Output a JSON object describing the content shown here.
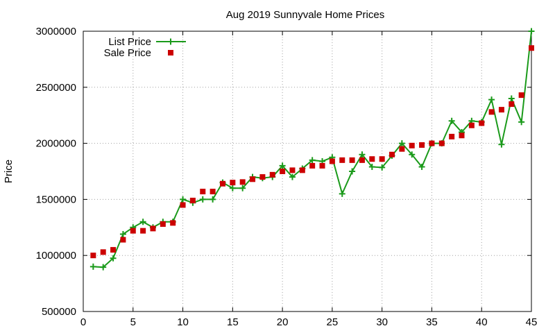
{
  "chart_data": {
    "type": "line",
    "title": "Aug 2019 Sunnyvale Home Prices",
    "xlabel": "",
    "ylabel": "Price",
    "xlim": [
      0,
      45
    ],
    "ylim": [
      500000,
      3000000
    ],
    "x_ticks": [
      "0",
      "5",
      "10",
      "15",
      "20",
      "25",
      "30",
      "35",
      "40",
      "45"
    ],
    "y_ticks": [
      "500000",
      "1000000",
      "1500000",
      "2000000",
      "2500000",
      "3000000"
    ],
    "grid": true,
    "legend_position": "top-left",
    "x": [
      1,
      2,
      3,
      4,
      5,
      6,
      7,
      8,
      9,
      10,
      11,
      12,
      13,
      14,
      15,
      16,
      17,
      18,
      19,
      20,
      21,
      22,
      23,
      24,
      25,
      26,
      27,
      28,
      29,
      30,
      31,
      32,
      33,
      34,
      35,
      36,
      37,
      38,
      39,
      40,
      41,
      42,
      43,
      44,
      45
    ],
    "series": [
      {
        "name": "List Price",
        "style": "line-plus",
        "color": "#1a9a1a",
        "values": [
          900000,
          895000,
          975000,
          1190000,
          1250000,
          1300000,
          1250000,
          1300000,
          1300000,
          1500000,
          1470000,
          1500000,
          1500000,
          1650000,
          1600000,
          1600000,
          1700000,
          1690000,
          1700000,
          1800000,
          1700000,
          1775000,
          1850000,
          1840000,
          1875000,
          1550000,
          1750000,
          1900000,
          1790000,
          1785000,
          1890000,
          2000000,
          1900000,
          1790000,
          2000000,
          2000000,
          2200000,
          2100000,
          2200000,
          2190000,
          2390000,
          1990000,
          2400000,
          2190000,
          3000000
        ]
      },
      {
        "name": "Sale Price",
        "style": "square-points",
        "color": "#cc0000",
        "values": [
          1000000,
          1030000,
          1050000,
          1140000,
          1220000,
          1220000,
          1240000,
          1280000,
          1290000,
          1450000,
          1490000,
          1570000,
          1570000,
          1640000,
          1650000,
          1655000,
          1680000,
          1700000,
          1720000,
          1750000,
          1760000,
          1760000,
          1800000,
          1800000,
          1840000,
          1850000,
          1850000,
          1850000,
          1860000,
          1860000,
          1900000,
          1950000,
          1980000,
          1985000,
          2000000,
          2000000,
          2060000,
          2070000,
          2160000,
          2180000,
          2280000,
          2300000,
          2350000,
          2430000,
          2850000
        ]
      }
    ]
  }
}
